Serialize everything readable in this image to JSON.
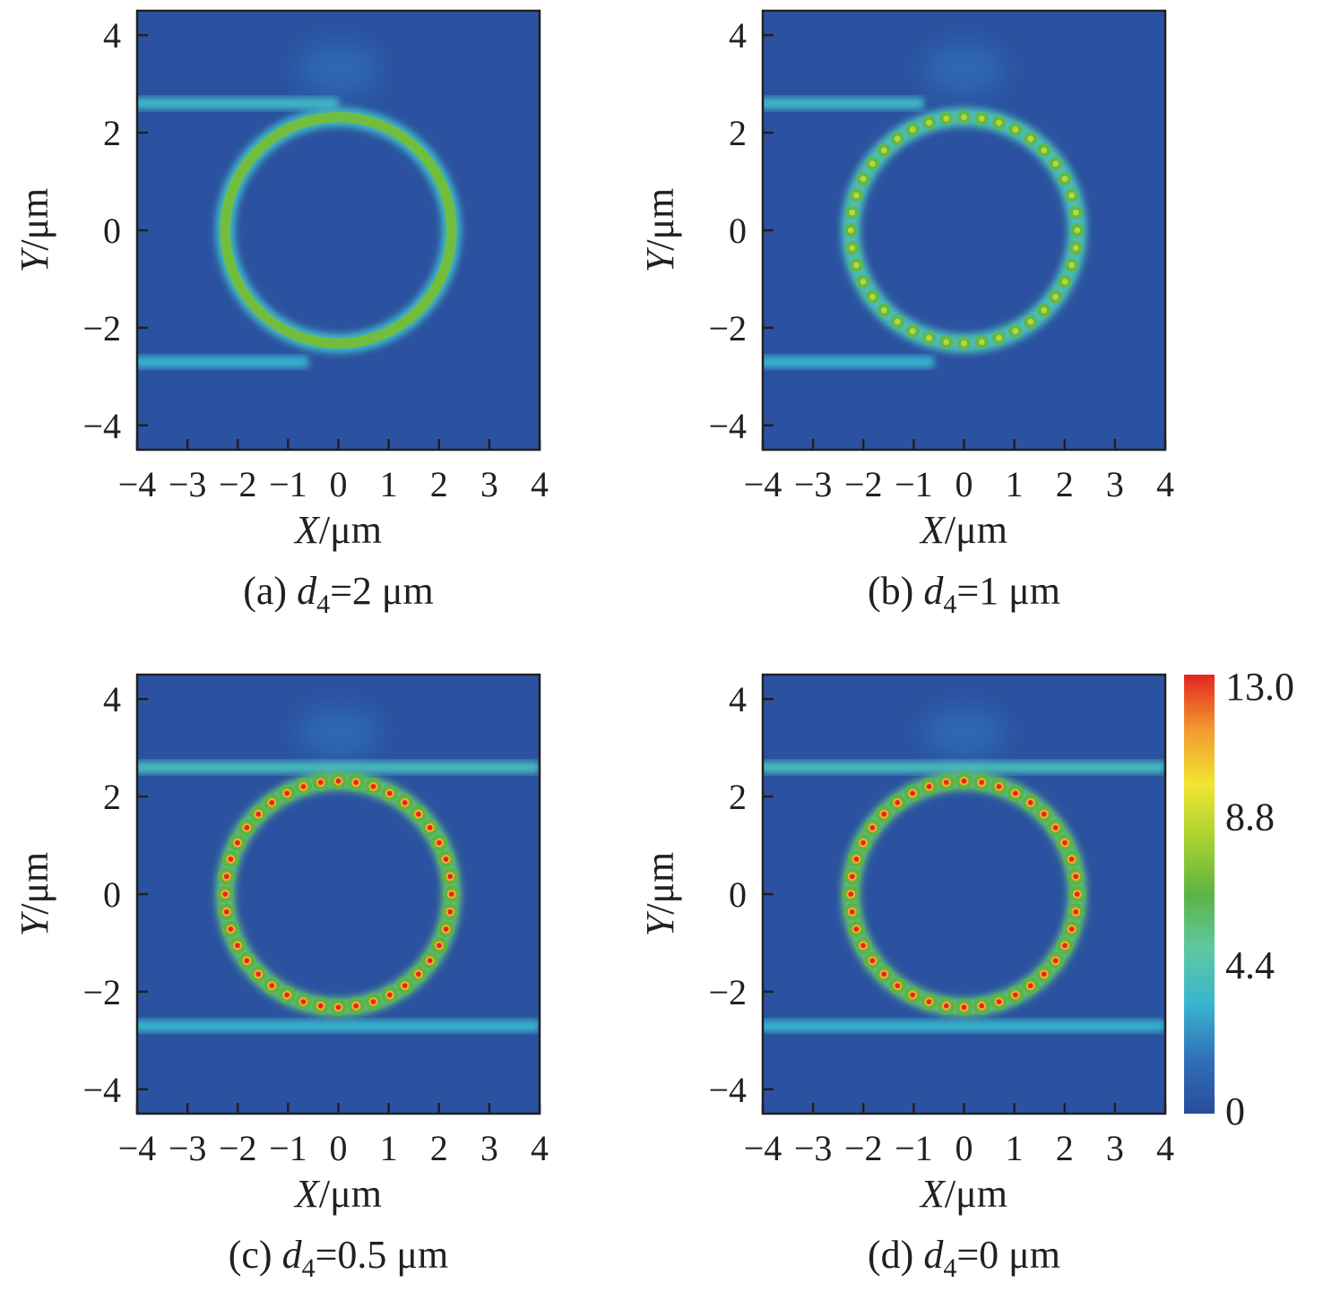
{
  "chart_data": [
    {
      "type": "heatmap",
      "panel": "a",
      "caption": {
        "prefix": "(a) ",
        "var": "d",
        "sub": "4",
        "suffix": "=2 μm"
      },
      "xlabel": {
        "var": "X",
        "unit": "/μm"
      },
      "ylabel": {
        "var": "Y",
        "unit": "/μm"
      },
      "xlim": [
        -4,
        4
      ],
      "ylim": [
        -4.5,
        4.5
      ],
      "xticks": [
        -4,
        -3,
        -2,
        -1,
        0,
        1,
        2,
        3,
        4
      ],
      "yticks": [
        4,
        2,
        0,
        -2,
        -4
      ],
      "ring": {
        "center": [
          0,
          0
        ],
        "radius": 2.25,
        "hotspots": 0,
        "peak": 7.0
      },
      "waveguides": [
        {
          "y": 2.6,
          "x_end": 0.0,
          "value": 3.5
        },
        {
          "y": -2.7,
          "x_end": -0.6,
          "value": 3.2
        }
      ]
    },
    {
      "type": "heatmap",
      "panel": "b",
      "caption": {
        "prefix": "(b) ",
        "var": "d",
        "sub": "4",
        "suffix": "=1 μm"
      },
      "xlabel": {
        "var": "X",
        "unit": "/μm"
      },
      "ylabel": {
        "var": "Y",
        "unit": "/μm"
      },
      "xlim": [
        -4,
        4
      ],
      "ylim": [
        -4.5,
        4.5
      ],
      "xticks": [
        -4,
        -3,
        -2,
        -1,
        0,
        1,
        2,
        3,
        4
      ],
      "yticks": [
        4,
        2,
        0,
        -2,
        -4
      ],
      "ring": {
        "center": [
          0,
          0
        ],
        "radius": 2.25,
        "hotspots": 40,
        "peak": 8.8
      },
      "waveguides": [
        {
          "y": 2.6,
          "x_end": -0.8,
          "value": 3.5
        },
        {
          "y": -2.7,
          "x_end": -0.6,
          "value": 3.2
        }
      ]
    },
    {
      "type": "heatmap",
      "panel": "c",
      "caption": {
        "prefix": "(c) ",
        "var": "d",
        "sub": "4",
        "suffix": "=0.5 μm"
      },
      "xlabel": {
        "var": "X",
        "unit": "/μm"
      },
      "ylabel": {
        "var": "Y",
        "unit": "/μm"
      },
      "xlim": [
        -4,
        4
      ],
      "ylim": [
        -4.5,
        4.5
      ],
      "xticks": [
        -4,
        -3,
        -2,
        -1,
        0,
        1,
        2,
        3,
        4
      ],
      "yticks": [
        4,
        2,
        0,
        -2,
        -4
      ],
      "ring": {
        "center": [
          0,
          0
        ],
        "radius": 2.25,
        "hotspots": 40,
        "peak": 13.0
      },
      "waveguides": [
        {
          "y": 2.6,
          "x_end": 4.0,
          "value": 3.8
        },
        {
          "y": -2.7,
          "x_end": 4.0,
          "value": 3.2
        }
      ]
    },
    {
      "type": "heatmap",
      "panel": "d",
      "caption": {
        "prefix": "(d) ",
        "var": "d",
        "sub": "4",
        "suffix": "=0 μm"
      },
      "xlabel": {
        "var": "X",
        "unit": "/μm"
      },
      "ylabel": {
        "var": "Y",
        "unit": "/μm"
      },
      "xlim": [
        -4,
        4
      ],
      "ylim": [
        -4.5,
        4.5
      ],
      "xticks": [
        -4,
        -3,
        -2,
        -1,
        0,
        1,
        2,
        3,
        4
      ],
      "yticks": [
        4,
        2,
        0,
        -2,
        -4
      ],
      "ring": {
        "center": [
          0,
          0
        ],
        "radius": 2.25,
        "hotspots": 40,
        "peak": 13.0
      },
      "waveguides": [
        {
          "y": 2.6,
          "x_end": 4.0,
          "value": 3.8
        },
        {
          "y": -2.7,
          "x_end": 4.0,
          "value": 3.2
        }
      ]
    }
  ],
  "colorbar": {
    "min": 0,
    "max": 13.0,
    "ticks": [
      {
        "value": 13.0,
        "label": "13.0"
      },
      {
        "value": 8.8,
        "label": "8.8"
      },
      {
        "value": 4.4,
        "label": "4.4"
      },
      {
        "value": 0,
        "label": "0"
      }
    ],
    "colors": [
      "#2a4b9b",
      "#2f71b8",
      "#39b5cf",
      "#5fc8a0",
      "#5cb444",
      "#a8d12f",
      "#f2e531",
      "#f29a2e",
      "#e32521"
    ]
  }
}
